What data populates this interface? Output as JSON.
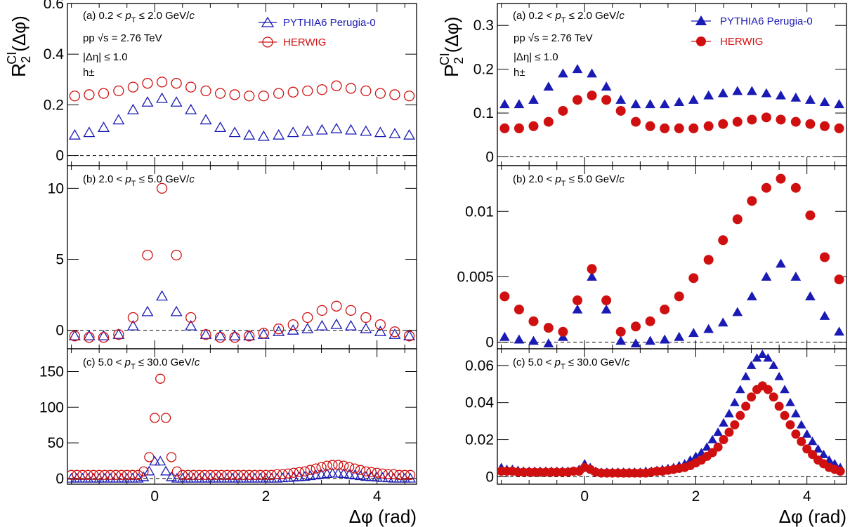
{
  "colors": {
    "pythia": "#1a1ab4",
    "herwig": "#d01010"
  },
  "legend": {
    "pythia": "PYTHIA6 Perugia-0",
    "herwig": "HERWIG"
  },
  "left": {
    "ylabel_main": "R",
    "ylabel_sub": "2",
    "ylabel_sup": "CI",
    "ylabel_tail": "(Δφ)",
    "marker": "open",
    "pt_labels": [
      {
        "pre": "(a) 0.2 < ",
        "p": "p",
        "sub": "T",
        "post": " ≤ 2.0 GeV/",
        "c": "c"
      },
      {
        "pre": "(b) 2.0 < ",
        "p": "p",
        "sub": "T",
        "post": " ≤ 5.0 GeV/",
        "c": "c"
      },
      {
        "pre": "(c) 5.0 < ",
        "p": "p",
        "sub": "T",
        "post": " ≤ 30.0 GeV/",
        "c": "c"
      }
    ]
  },
  "right": {
    "ylabel_main": "P",
    "ylabel_sub": "2",
    "ylabel_sup": "CI",
    "ylabel_tail": "(Δφ)",
    "marker": "filled",
    "pt_labels": [
      {
        "pre": "(a) 0.2 < ",
        "p": "p",
        "sub": "T",
        "post": " ≤ 2.0 GeV/",
        "c": "c"
      },
      {
        "pre": "(b) 2.0 < ",
        "p": "p",
        "sub": "T",
        "post": " ≤ 5.0 GeV/",
        "c": "c"
      },
      {
        "pre": "(c) 5.0 < ",
        "p": "p",
        "sub": "T",
        "post": " ≤ 30.0 GeV/",
        "c": "c"
      }
    ]
  },
  "info": {
    "system": "pp  √s = 2.76 TeV",
    "eta": "|Δη| ≤ 1.0",
    "particles": "h±"
  },
  "xlabel": "Δφ (rad)",
  "chart_data": [
    {
      "type": "scatter",
      "panel": "left-a",
      "xlim": [
        -1.571,
        4.712
      ],
      "ylim": [
        -0.04,
        0.6
      ],
      "yticks": [
        {
          "v": 0,
          "t": "0"
        },
        {
          "v": 0.2,
          "t": "0.2"
        },
        {
          "v": 0.4,
          "t": "0.4"
        },
        {
          "v": 0.6,
          "t": "0.6"
        }
      ],
      "x": [
        -1.44,
        -1.18,
        -0.92,
        -0.65,
        -0.39,
        -0.13,
        0.13,
        0.39,
        0.65,
        0.92,
        1.18,
        1.44,
        1.7,
        1.96,
        2.23,
        2.49,
        2.75,
        3.01,
        3.27,
        3.53,
        3.8,
        4.06,
        4.32,
        4.58
      ],
      "series": [
        {
          "name": "PYTHIA6 Perugia-0",
          "values": [
            0.08,
            0.09,
            0.11,
            0.14,
            0.18,
            0.21,
            0.225,
            0.21,
            0.18,
            0.14,
            0.11,
            0.09,
            0.08,
            0.075,
            0.08,
            0.09,
            0.095,
            0.1,
            0.105,
            0.1,
            0.095,
            0.09,
            0.085,
            0.08
          ]
        },
        {
          "name": "HERWIG",
          "values": [
            0.235,
            0.24,
            0.245,
            0.255,
            0.27,
            0.285,
            0.29,
            0.285,
            0.27,
            0.255,
            0.245,
            0.24,
            0.235,
            0.235,
            0.245,
            0.25,
            0.255,
            0.26,
            0.275,
            0.265,
            0.255,
            0.245,
            0.24,
            0.235
          ]
        }
      ]
    },
    {
      "type": "scatter",
      "panel": "left-b",
      "xlim": [
        -1.571,
        4.712
      ],
      "ylim": [
        -1.3,
        11.6
      ],
      "yticks": [
        {
          "v": 0,
          "t": "0"
        },
        {
          "v": 5,
          "t": "5"
        },
        {
          "v": 10,
          "t": "10"
        }
      ],
      "x": [
        -1.44,
        -1.18,
        -0.92,
        -0.65,
        -0.39,
        -0.13,
        0.13,
        0.39,
        0.65,
        0.92,
        1.18,
        1.44,
        1.7,
        1.96,
        2.23,
        2.49,
        2.75,
        3.01,
        3.27,
        3.53,
        3.8,
        4.06,
        4.32,
        4.58
      ],
      "series": [
        {
          "name": "PYTHIA6 Perugia-0",
          "values": [
            -0.4,
            -0.4,
            -0.4,
            -0.3,
            0.3,
            1.3,
            2.4,
            1.3,
            0.3,
            -0.3,
            -0.4,
            -0.4,
            -0.4,
            -0.3,
            -0.1,
            0.0,
            0.1,
            0.3,
            0.4,
            0.3,
            0.1,
            -0.1,
            -0.3,
            -0.4
          ]
        },
        {
          "name": "HERWIG",
          "values": [
            -0.4,
            -0.5,
            -0.5,
            -0.3,
            0.9,
            5.3,
            10.0,
            5.3,
            0.9,
            -0.3,
            -0.5,
            -0.5,
            -0.4,
            -0.2,
            0.1,
            0.4,
            0.9,
            1.4,
            1.7,
            1.4,
            0.9,
            0.4,
            -0.1,
            -0.4
          ]
        }
      ]
    },
    {
      "type": "scatter",
      "panel": "left-c",
      "xlim": [
        -1.571,
        4.712
      ],
      "ylim": [
        -8,
        182
      ],
      "yticks": [
        {
          "v": 0,
          "t": "0"
        },
        {
          "v": 50,
          "t": "50"
        },
        {
          "v": 100,
          "t": "100"
        },
        {
          "v": 150,
          "t": "150"
        }
      ],
      "x": [
        -1.5,
        -1.4,
        -1.3,
        -1.2,
        -1.1,
        -1.0,
        -0.9,
        -0.8,
        -0.7,
        -0.6,
        -0.5,
        -0.4,
        -0.3,
        -0.2,
        -0.1,
        0.0,
        0.1,
        0.2,
        0.3,
        0.4,
        0.5,
        0.6,
        0.7,
        0.8,
        0.9,
        1.0,
        1.1,
        1.2,
        1.3,
        1.4,
        1.5,
        1.6,
        1.7,
        1.8,
        1.9,
        2.0,
        2.1,
        2.2,
        2.3,
        2.4,
        2.5,
        2.6,
        2.7,
        2.8,
        2.9,
        3.0,
        3.1,
        3.2,
        3.3,
        3.4,
        3.5,
        3.6,
        3.7,
        3.8,
        3.9,
        4.0,
        4.1,
        4.2,
        4.3,
        4.4,
        4.5,
        4.6
      ],
      "series": [
        {
          "name": "PYTHIA6 Perugia-0",
          "values": [
            0,
            0,
            0,
            0,
            0,
            0,
            0,
            0,
            0,
            0,
            0,
            0,
            0,
            2,
            10,
            24,
            24,
            10,
            2,
            0,
            0,
            0,
            0,
            0,
            0,
            0,
            0,
            0,
            0,
            0,
            0,
            0,
            0,
            0,
            0,
            0,
            0,
            0,
            0.5,
            1,
            1.5,
            2,
            2.5,
            3.5,
            4.5,
            5.5,
            6.5,
            7,
            7,
            6.5,
            5.5,
            4.5,
            3.5,
            2.5,
            2,
            1.5,
            1,
            0.5,
            0,
            0,
            0,
            0
          ]
        },
        {
          "name": "HERWIG",
          "values": [
            5,
            5,
            5,
            5,
            5,
            5,
            5,
            5,
            5,
            5,
            5,
            5,
            5,
            10,
            30,
            85,
            140,
            85,
            30,
            10,
            5,
            5,
            5,
            5,
            5,
            5,
            5,
            5,
            5,
            5,
            5,
            5,
            5,
            5,
            5,
            5,
            5,
            6,
            6,
            7,
            8,
            9,
            10,
            12,
            14,
            16,
            18,
            19,
            19,
            18,
            16,
            14,
            12,
            10,
            9,
            8,
            7,
            6,
            6,
            5,
            5,
            5
          ]
        }
      ]
    },
    {
      "type": "scatter",
      "panel": "right-a",
      "xlim": [
        -1.571,
        4.712
      ],
      "ylim": [
        -0.02,
        0.35
      ],
      "yticks": [
        {
          "v": 0,
          "t": "0"
        },
        {
          "v": 0.1,
          "t": "0.1"
        },
        {
          "v": 0.2,
          "t": "0.2"
        },
        {
          "v": 0.3,
          "t": "0.3"
        }
      ],
      "x": [
        -1.44,
        -1.18,
        -0.92,
        -0.65,
        -0.39,
        -0.13,
        0.13,
        0.39,
        0.65,
        0.92,
        1.18,
        1.44,
        1.7,
        1.96,
        2.23,
        2.49,
        2.75,
        3.01,
        3.27,
        3.53,
        3.8,
        4.06,
        4.32,
        4.58
      ],
      "series": [
        {
          "name": "PYTHIA6 Perugia-0",
          "values": [
            0.12,
            0.12,
            0.13,
            0.16,
            0.19,
            0.2,
            0.19,
            0.16,
            0.13,
            0.12,
            0.12,
            0.12,
            0.125,
            0.13,
            0.14,
            0.145,
            0.15,
            0.15,
            0.145,
            0.14,
            0.135,
            0.13,
            0.125,
            0.12
          ]
        },
        {
          "name": "HERWIG",
          "values": [
            0.065,
            0.065,
            0.07,
            0.08,
            0.105,
            0.13,
            0.14,
            0.13,
            0.105,
            0.08,
            0.07,
            0.065,
            0.065,
            0.065,
            0.07,
            0.075,
            0.08,
            0.085,
            0.09,
            0.085,
            0.08,
            0.075,
            0.07,
            0.065
          ]
        }
      ]
    },
    {
      "type": "scatter",
      "panel": "right-b",
      "xlim": [
        -1.571,
        4.712
      ],
      "ylim": [
        -0.0005,
        0.0135
      ],
      "yticks": [
        {
          "v": 0,
          "t": "0"
        },
        {
          "v": 0.005,
          "t": "0.005"
        },
        {
          "v": 0.01,
          "t": "0.01"
        }
      ],
      "x": [
        -1.44,
        -1.18,
        -0.92,
        -0.65,
        -0.39,
        -0.13,
        0.13,
        0.39,
        0.65,
        0.92,
        1.18,
        1.44,
        1.7,
        1.96,
        2.23,
        2.49,
        2.75,
        3.01,
        3.27,
        3.53,
        3.8,
        4.06,
        4.32,
        4.58
      ],
      "series": [
        {
          "name": "PYTHIA6 Perugia-0",
          "values": [
            0.0004,
            0.0002,
            0.0001,
            -0.0001,
            0.0004,
            0.0025,
            0.005,
            0.0025,
            0.0001,
            -0.0001,
            0.0001,
            0.0002,
            0.0004,
            0.0007,
            0.001,
            0.0015,
            0.0023,
            0.0035,
            0.005,
            0.006,
            0.005,
            0.0035,
            0.002,
            0.0008
          ]
        },
        {
          "name": "HERWIG",
          "values": [
            0.0035,
            0.0025,
            0.0016,
            0.0011,
            0.0008,
            0.0032,
            0.0056,
            0.0032,
            0.0008,
            0.0012,
            0.0016,
            0.0025,
            0.0035,
            0.0049,
            0.0063,
            0.0078,
            0.0094,
            0.0108,
            0.0118,
            0.0125,
            0.0118,
            0.0097,
            0.0065,
            0.0048
          ]
        }
      ]
    },
    {
      "type": "scatter",
      "panel": "right-c",
      "xlim": [
        -1.571,
        4.712
      ],
      "ylim": [
        -0.004,
        0.069
      ],
      "yticks": [
        {
          "v": 0,
          "t": "0"
        },
        {
          "v": 0.02,
          "t": "0.02"
        },
        {
          "v": 0.04,
          "t": "0.04"
        },
        {
          "v": 0.06,
          "t": "0.06"
        }
      ],
      "x": [
        -1.5,
        -1.4,
        -1.3,
        -1.2,
        -1.1,
        -1.0,
        -0.9,
        -0.8,
        -0.7,
        -0.6,
        -0.5,
        -0.4,
        -0.3,
        -0.2,
        -0.1,
        0.0,
        0.1,
        0.2,
        0.3,
        0.4,
        0.5,
        0.6,
        0.7,
        0.8,
        0.9,
        1.0,
        1.1,
        1.2,
        1.3,
        1.4,
        1.5,
        1.6,
        1.7,
        1.8,
        1.9,
        2.0,
        2.1,
        2.2,
        2.3,
        2.4,
        2.5,
        2.6,
        2.7,
        2.8,
        2.9,
        3.0,
        3.1,
        3.2,
        3.3,
        3.4,
        3.5,
        3.6,
        3.7,
        3.8,
        3.9,
        4.0,
        4.1,
        4.2,
        4.3,
        4.4,
        4.5,
        4.6
      ],
      "series": [
        {
          "name": "PYTHIA6 Perugia-0",
          "values": [
            0.005,
            0.004,
            0.004,
            0.0035,
            0.003,
            0.003,
            0.003,
            0.003,
            0.003,
            0.003,
            0.003,
            0.003,
            0.003,
            0.003,
            0.004,
            0.007,
            0.005,
            0.003,
            0.0025,
            0.0025,
            0.0025,
            0.0025,
            0.0025,
            0.0025,
            0.0025,
            0.0025,
            0.003,
            0.003,
            0.0035,
            0.004,
            0.0045,
            0.005,
            0.006,
            0.007,
            0.009,
            0.011,
            0.013,
            0.016,
            0.02,
            0.024,
            0.029,
            0.034,
            0.04,
            0.047,
            0.054,
            0.06,
            0.064,
            0.066,
            0.064,
            0.06,
            0.054,
            0.047,
            0.04,
            0.034,
            0.028,
            0.023,
            0.019,
            0.015,
            0.012,
            0.009,
            0.007,
            0.005
          ]
        },
        {
          "name": "HERWIG",
          "values": [
            0.003,
            0.003,
            0.003,
            0.0025,
            0.0025,
            0.0025,
            0.0025,
            0.0025,
            0.0025,
            0.0025,
            0.0025,
            0.0025,
            0.0025,
            0.003,
            0.003,
            0.005,
            0.004,
            0.0025,
            0.002,
            0.002,
            0.002,
            0.002,
            0.002,
            0.002,
            0.002,
            0.002,
            0.002,
            0.0025,
            0.003,
            0.003,
            0.0035,
            0.004,
            0.0045,
            0.005,
            0.006,
            0.0075,
            0.009,
            0.011,
            0.013,
            0.016,
            0.02,
            0.024,
            0.028,
            0.033,
            0.038,
            0.043,
            0.047,
            0.049,
            0.047,
            0.043,
            0.038,
            0.033,
            0.028,
            0.023,
            0.019,
            0.015,
            0.012,
            0.009,
            0.007,
            0.005,
            0.004,
            0.003
          ]
        }
      ]
    }
  ]
}
